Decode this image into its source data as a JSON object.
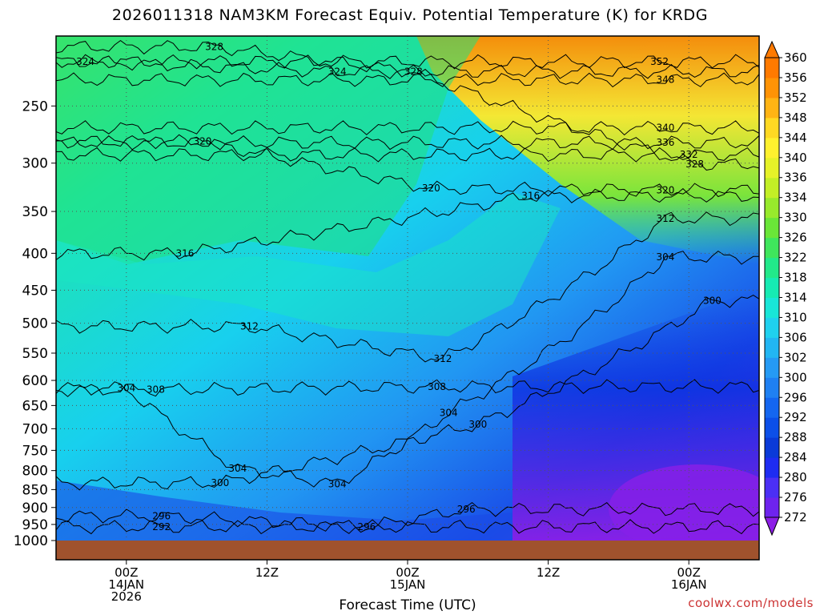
{
  "title": "2026011318 NAM3KM Forecast Equiv. Potential Temperature (K) for KRDG",
  "credit": "coolwx.com/models",
  "chart_data": {
    "type": "heatmap",
    "title": "2026011318 NAM3KM Forecast Equiv. Potential Temperature (K) for KRDG",
    "xlabel": "Forecast Time (UTC)",
    "ylabel": "",
    "x_ticks": [
      {
        "hour": 6,
        "lines": [
          "00Z",
          "14JAN",
          "2026"
        ]
      },
      {
        "hour": 18,
        "lines": [
          "12Z"
        ]
      },
      {
        "hour": 30,
        "lines": [
          "00Z",
          "15JAN"
        ]
      },
      {
        "hour": 42,
        "lines": [
          "12Z"
        ]
      },
      {
        "hour": 54,
        "lines": [
          "00Z",
          "16JAN"
        ]
      }
    ],
    "xlim": [
      0,
      60
    ],
    "y_ticks": [
      250,
      300,
      350,
      400,
      450,
      500,
      550,
      600,
      650,
      700,
      750,
      800,
      850,
      900,
      950,
      1000
    ],
    "ylim": [
      1000,
      200
    ],
    "y_scale": "log",
    "colorbar": {
      "min": 272,
      "max": 360,
      "levels": [
        272,
        276,
        280,
        284,
        288,
        292,
        296,
        300,
        302,
        306,
        310,
        314,
        318,
        322,
        326,
        330,
        334,
        336,
        340,
        344,
        348,
        352,
        356,
        360
      ],
      "colors": [
        "#8c1ee6",
        "#6e23ee",
        "#4b2ff5",
        "#1e2cf2",
        "#0a3ad8",
        "#0c4fe8",
        "#1466f0",
        "#1f80f2",
        "#259af4",
        "#22b6f3",
        "#1fd1ef",
        "#18e6d8",
        "#16ebb3",
        "#22e98a",
        "#3fe65c",
        "#6ae638",
        "#98ea2c",
        "#c3ef26",
        "#e6f228",
        "#fff12e",
        "#ffd923",
        "#ffb414",
        "#ff9305",
        "#ff7a00"
      ]
    },
    "ground_color": "#a0522d",
    "contour_labels": [
      {
        "hour": 13.5,
        "p": 207,
        "value": 328
      },
      {
        "hour": 2.5,
        "p": 217,
        "value": 324
      },
      {
        "hour": 24,
        "p": 224,
        "value": 324
      },
      {
        "hour": 30.5,
        "p": 224,
        "value": 328
      },
      {
        "hour": 51.5,
        "p": 217,
        "value": 352
      },
      {
        "hour": 52,
        "p": 230,
        "value": 348
      },
      {
        "hour": 52,
        "p": 268,
        "value": 340
      },
      {
        "hour": 52,
        "p": 281,
        "value": 336
      },
      {
        "hour": 54,
        "p": 292,
        "value": 332
      },
      {
        "hour": 54.5,
        "p": 301,
        "value": 328
      },
      {
        "hour": 12.5,
        "p": 280,
        "value": 320
      },
      {
        "hour": 32,
        "p": 325,
        "value": 320
      },
      {
        "hour": 52,
        "p": 327,
        "value": 320
      },
      {
        "hour": 40.5,
        "p": 333,
        "value": 316
      },
      {
        "hour": 52,
        "p": 358,
        "value": 312
      },
      {
        "hour": 11,
        "p": 400,
        "value": 316
      },
      {
        "hour": 52,
        "p": 405,
        "value": 304
      },
      {
        "hour": 56,
        "p": 465,
        "value": 300
      },
      {
        "hour": 16.5,
        "p": 505,
        "value": 312
      },
      {
        "hour": 33,
        "p": 560,
        "value": 312
      },
      {
        "hour": 32.5,
        "p": 612,
        "value": 308
      },
      {
        "hour": 6,
        "p": 615,
        "value": 304
      },
      {
        "hour": 8.5,
        "p": 618,
        "value": 308
      },
      {
        "hour": 33.5,
        "p": 665,
        "value": 304
      },
      {
        "hour": 36,
        "p": 690,
        "value": 300
      },
      {
        "hour": 15.5,
        "p": 795,
        "value": 304
      },
      {
        "hour": 24,
        "p": 835,
        "value": 304
      },
      {
        "hour": 14,
        "p": 832,
        "value": 300
      },
      {
        "hour": 35,
        "p": 905,
        "value": 296
      },
      {
        "hour": 9,
        "p": 925,
        "value": 296
      },
      {
        "hour": 9,
        "p": 957,
        "value": 292
      },
      {
        "hour": 26.5,
        "p": 957,
        "value": 296
      }
    ]
  }
}
